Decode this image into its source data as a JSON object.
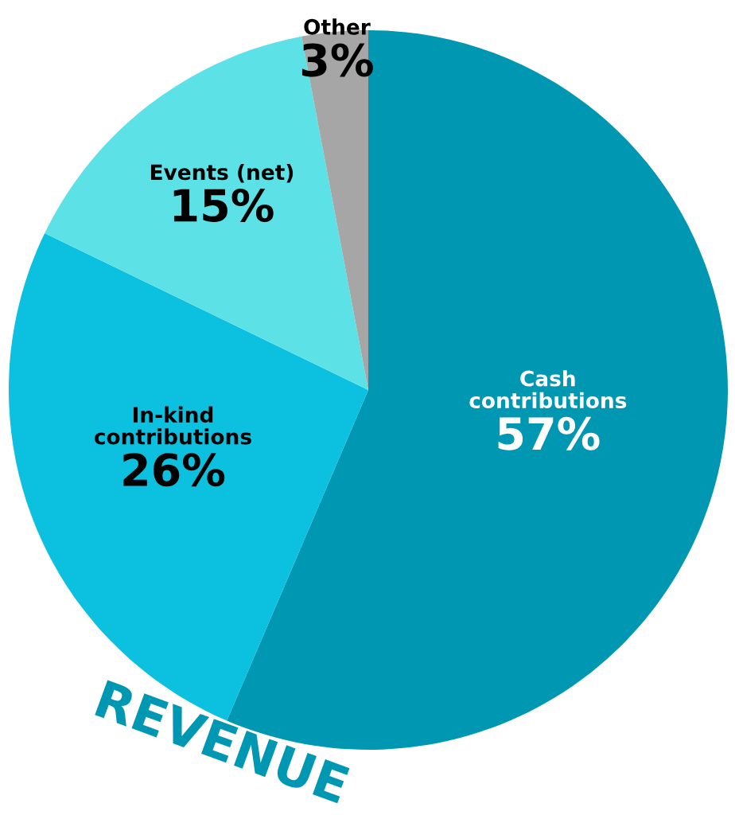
{
  "chart_data": {
    "type": "pie",
    "title": "REVENUE",
    "categories": [
      "Cash contributions",
      "In-kind contributions",
      "Events (net)",
      "Other"
    ],
    "values": [
      57,
      26,
      15,
      3
    ],
    "value_labels": [
      "57%",
      "26%",
      "15%",
      "3%"
    ],
    "colors": [
      "#0097b2",
      "#0cc0df",
      "#5ce1e6",
      "#a6a6a6"
    ]
  }
}
